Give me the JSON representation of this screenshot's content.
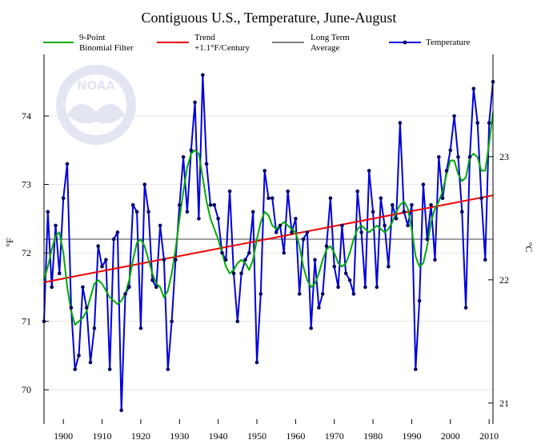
{
  "chart_data": {
    "type": "line",
    "title": "Contiguous U.S., Temperature, June-August",
    "xlabel": "",
    "ylabel": "°F",
    "y2label": "°C",
    "xlim": [
      1895,
      2011
    ],
    "ylim": [
      69.5,
      74.9
    ],
    "y2lim": [
      20.83,
      23.83
    ],
    "grid": "horizontal",
    "legend_position": "top",
    "x_ticks": [
      1900,
      1910,
      1920,
      1930,
      1940,
      1950,
      1960,
      1970,
      1980,
      1990,
      2000,
      2010
    ],
    "y_ticks": [
      70,
      71,
      72,
      73,
      74
    ],
    "y2_ticks": [
      21,
      22,
      23
    ],
    "series": [
      {
        "name": "9-Point Binomial Filter",
        "legend_lines": [
          "9-Point",
          "Binomial Filter"
        ],
        "color": "#00aa00",
        "x": [
          1895,
          1896,
          1897,
          1898,
          1899,
          1900,
          1901,
          1902,
          1903,
          1904,
          1905,
          1906,
          1907,
          1908,
          1909,
          1910,
          1911,
          1912,
          1913,
          1914,
          1915,
          1916,
          1917,
          1918,
          1919,
          1920,
          1921,
          1922,
          1923,
          1924,
          1925,
          1926,
          1927,
          1928,
          1929,
          1930,
          1931,
          1932,
          1933,
          1934,
          1935,
          1936,
          1937,
          1938,
          1939,
          1940,
          1941,
          1942,
          1943,
          1944,
          1945,
          1946,
          1947,
          1948,
          1949,
          1950,
          1951,
          1952,
          1953,
          1954,
          1955,
          1956,
          1957,
          1958,
          1959,
          1960,
          1961,
          1962,
          1963,
          1964,
          1965,
          1966,
          1967,
          1968,
          1969,
          1970,
          1971,
          1972,
          1973,
          1974,
          1975,
          1976,
          1977,
          1978,
          1979,
          1980,
          1981,
          1982,
          1983,
          1984,
          1985,
          1986,
          1987,
          1988,
          1989,
          1990,
          1991,
          1992,
          1993,
          1994,
          1995,
          1996,
          1997,
          1998,
          1999,
          2000,
          2001,
          2002,
          2003,
          2004,
          2005,
          2006,
          2007,
          2008,
          2009,
          2010,
          2011
        ],
        "values": [
          71.6,
          71.8,
          72.05,
          72.25,
          72.3,
          72.0,
          71.5,
          71.15,
          70.95,
          71.0,
          71.05,
          71.15,
          71.35,
          71.55,
          71.6,
          71.55,
          71.45,
          71.35,
          71.3,
          71.25,
          71.3,
          71.4,
          71.6,
          71.9,
          72.15,
          72.2,
          72.1,
          71.9,
          71.7,
          71.55,
          71.5,
          71.35,
          71.45,
          71.7,
          72.05,
          72.5,
          72.9,
          73.25,
          73.45,
          73.5,
          73.45,
          73.1,
          72.75,
          72.5,
          72.35,
          72.2,
          72.0,
          71.8,
          71.7,
          71.75,
          71.85,
          71.9,
          71.85,
          71.75,
          71.9,
          72.2,
          72.45,
          72.6,
          72.55,
          72.4,
          72.35,
          72.4,
          72.45,
          72.4,
          72.35,
          72.3,
          72.1,
          71.8,
          71.6,
          71.5,
          71.55,
          71.7,
          71.9,
          72.05,
          72.1,
          72.0,
          71.85,
          71.8,
          71.85,
          72.0,
          72.2,
          72.35,
          72.4,
          72.35,
          72.3,
          72.35,
          72.4,
          72.35,
          72.3,
          72.35,
          72.45,
          72.6,
          72.7,
          72.75,
          72.65,
          72.35,
          71.95,
          71.8,
          71.85,
          72.1,
          72.45,
          72.65,
          72.75,
          72.9,
          73.15,
          73.35,
          73.35,
          73.15,
          73.05,
          73.1,
          73.4,
          73.45,
          73.4,
          73.2,
          73.2,
          73.6,
          74.05
        ]
      },
      {
        "name": "Trend",
        "legend_lines": [
          "Trend",
          "+1.1°F/Century"
        ],
        "color": "#ee0000",
        "x": [
          1895,
          2011
        ],
        "values": [
          71.57,
          72.84
        ]
      },
      {
        "name": "Long Term Average",
        "legend_lines": [
          "Long Term",
          "Average"
        ],
        "color": "#808080",
        "x": [
          1895,
          2011
        ],
        "values": [
          72.2,
          72.2
        ]
      },
      {
        "name": "Temperature",
        "legend_lines": [
          "Temperature"
        ],
        "color": "#0000dd",
        "x": [
          1895,
          1896,
          1897,
          1898,
          1899,
          1900,
          1901,
          1902,
          1903,
          1904,
          1905,
          1906,
          1907,
          1908,
          1909,
          1910,
          1911,
          1912,
          1913,
          1914,
          1915,
          1916,
          1917,
          1918,
          1919,
          1920,
          1921,
          1922,
          1923,
          1924,
          1925,
          1926,
          1927,
          1928,
          1929,
          1930,
          1931,
          1932,
          1933,
          1934,
          1935,
          1936,
          1937,
          1938,
          1939,
          1940,
          1941,
          1942,
          1943,
          1944,
          1945,
          1946,
          1947,
          1948,
          1949,
          1950,
          1951,
          1952,
          1953,
          1954,
          1955,
          1956,
          1957,
          1958,
          1959,
          1960,
          1961,
          1962,
          1963,
          1964,
          1965,
          1966,
          1967,
          1968,
          1969,
          1970,
          1971,
          1972,
          1973,
          1974,
          1975,
          1976,
          1977,
          1978,
          1979,
          1980,
          1981,
          1982,
          1983,
          1984,
          1985,
          1986,
          1987,
          1988,
          1989,
          1990,
          1991,
          1992,
          1993,
          1994,
          1995,
          1996,
          1997,
          1998,
          1999,
          2000,
          2001,
          2002,
          2003,
          2004,
          2005,
          2006,
          2007,
          2008,
          2009,
          2010,
          2011
        ],
        "values": [
          71.0,
          72.6,
          71.5,
          72.4,
          71.7,
          72.8,
          73.3,
          71.2,
          70.3,
          70.5,
          71.5,
          71.2,
          70.4,
          70.9,
          72.1,
          71.8,
          71.9,
          70.3,
          72.2,
          72.3,
          69.7,
          71.4,
          71.5,
          72.7,
          72.6,
          70.9,
          73.0,
          72.6,
          71.6,
          71.5,
          72.4,
          71.9,
          70.3,
          71.0,
          71.9,
          72.7,
          73.4,
          72.6,
          73.5,
          74.2,
          72.5,
          74.6,
          73.3,
          72.7,
          72.7,
          72.5,
          72.0,
          71.9,
          72.9,
          71.7,
          71.0,
          71.7,
          71.9,
          72.0,
          72.6,
          70.4,
          71.4,
          73.2,
          72.8,
          72.8,
          72.3,
          72.4,
          72.0,
          72.9,
          72.3,
          72.5,
          71.4,
          72.2,
          72.3,
          70.9,
          71.9,
          71.2,
          71.4,
          72.1,
          72.8,
          71.8,
          71.5,
          72.4,
          71.7,
          71.6,
          71.4,
          72.9,
          72.3,
          71.5,
          73.2,
          72.6,
          71.5,
          72.8,
          72.4,
          71.8,
          72.7,
          72.5,
          73.9,
          72.6,
          72.4,
          72.7,
          70.3,
          71.3,
          73.0,
          72.2,
          72.7,
          71.9,
          73.4,
          72.8,
          73.2,
          73.5,
          74.0,
          73.4,
          72.6,
          71.2,
          73.4,
          74.4,
          73.9,
          72.8,
          71.9,
          73.9,
          74.5
        ]
      }
    ]
  },
  "logo": {
    "text": "NOAA"
  }
}
